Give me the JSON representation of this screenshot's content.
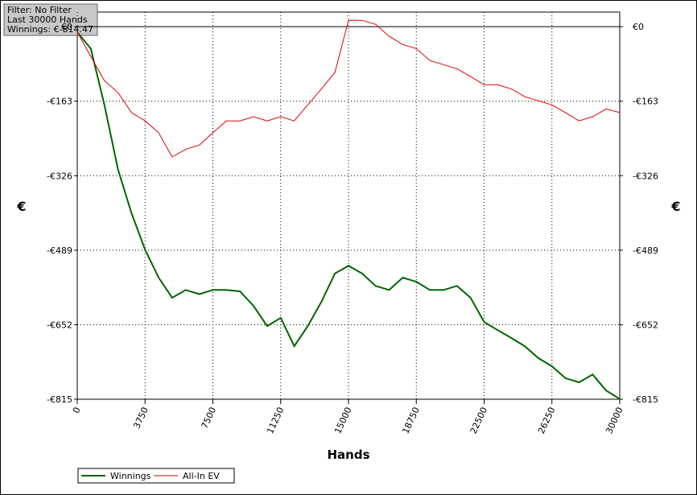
{
  "info": {
    "filter": "Filter: No Filter",
    "hands": "Last  30000 Hands",
    "winnings": "Winnings: €-814.47"
  },
  "chart_data": {
    "type": "line",
    "ylabel": "€",
    "xlabel": "Hands",
    "x": [
      0,
      750,
      1500,
      2250,
      3000,
      3750,
      4500,
      5250,
      6000,
      6750,
      7500,
      8250,
      9000,
      9750,
      10500,
      11250,
      12000,
      12750,
      13500,
      14250,
      15000,
      15750,
      16500,
      17250,
      18000,
      18750,
      19500,
      20250,
      21000,
      21750,
      22500,
      23250,
      24000,
      24750,
      25500,
      26250,
      27000,
      27750,
      28500,
      29250,
      30000
    ],
    "series": [
      {
        "name": "Winnings",
        "color": "#006400",
        "values": [
          -12,
          -48,
          -171,
          -312,
          -408,
          -488,
          -549,
          -593,
          -576,
          -585,
          -576,
          -576,
          -579,
          -611,
          -655,
          -637,
          -699,
          -655,
          -602,
          -540,
          -523,
          -540,
          -567,
          -576,
          -549,
          -558,
          -576,
          -576,
          -567,
          -593,
          -646,
          -664,
          -681,
          -699,
          -725,
          -743,
          -769,
          -778,
          -761,
          -796,
          -814.47
        ]
      },
      {
        "name": "All-In EV",
        "color": "#e00000",
        "values": [
          -12,
          -65,
          -118,
          -144,
          -188,
          -206,
          -232,
          -285,
          -268,
          -259,
          -232,
          -206,
          -206,
          -197,
          -206,
          -197,
          -206,
          -171,
          -136,
          -100,
          14,
          14,
          5,
          -21,
          -39,
          -48,
          -74,
          -83,
          -92,
          -109,
          -127,
          -127,
          -136,
          -153,
          -162,
          -171,
          -188,
          -206,
          -197,
          -180,
          -188
        ]
      }
    ],
    "xlim": [
      0,
      30000
    ],
    "xticks": [
      0,
      3750,
      7500,
      11250,
      15000,
      18750,
      22500,
      26250,
      30000
    ],
    "ylim": [
      -815,
      32
    ],
    "yticks": [
      {
        "value": 0,
        "label": "€0"
      },
      {
        "value": -163,
        "label": "-€163"
      },
      {
        "value": -326,
        "label": "-€326"
      },
      {
        "value": -489,
        "label": "-€489"
      },
      {
        "value": -652,
        "label": "-€652"
      },
      {
        "value": -815,
        "label": "-€815"
      }
    ],
    "grid": true
  }
}
